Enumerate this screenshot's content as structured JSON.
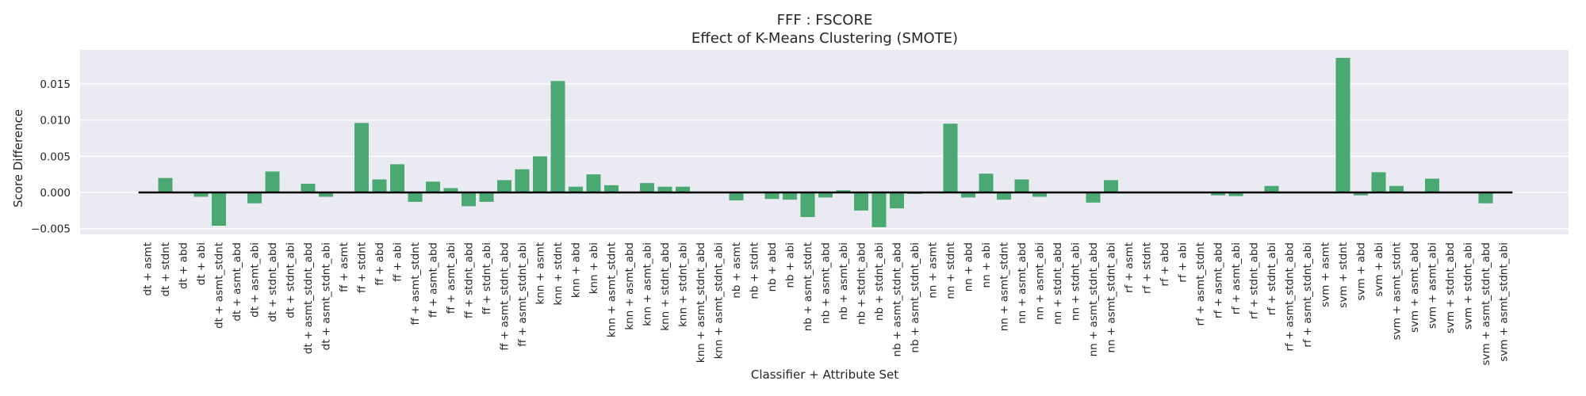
{
  "chart_data": {
    "type": "bar",
    "title": "FFF : FSCORE",
    "subtitle": "Effect of K-Means Clustering (SMOTE)",
    "xlabel": "Classifier + Attribute Set",
    "ylabel": "Score Difference",
    "ylim": [
      -0.0058,
      0.0197
    ],
    "yticks": [
      -0.005,
      0.0,
      0.005,
      0.01,
      0.015
    ],
    "ytick_labels": [
      "−0.005",
      "0.000",
      "0.005",
      "0.010",
      "0.015"
    ],
    "grid": true,
    "bar_color": "#4aa872",
    "background_color": "#eaeaf2",
    "zero_line_color": "#000000",
    "categories": [
      "dt + asmt",
      "dt + stdnt",
      "dt + abd",
      "dt + abi",
      "dt + asmt_stdnt",
      "dt + asmt_abd",
      "dt + asmt_abi",
      "dt + stdnt_abd",
      "dt + stdnt_abi",
      "dt + asmt_stdnt_abd",
      "dt + asmt_stdnt_abi",
      "ff + asmt",
      "ff + stdnt",
      "ff + abd",
      "ff + abi",
      "ff + asmt_stdnt",
      "ff + asmt_abd",
      "ff + asmt_abi",
      "ff + stdnt_abd",
      "ff + stdnt_abi",
      "ff + asmt_stdnt_abd",
      "ff + asmt_stdnt_abi",
      "knn + asmt",
      "knn + stdnt",
      "knn + abd",
      "knn + abi",
      "knn + asmt_stdnt",
      "knn + asmt_abd",
      "knn + asmt_abi",
      "knn + stdnt_abd",
      "knn + stdnt_abi",
      "knn + asmt_stdnt_abd",
      "knn + asmt_stdnt_abi",
      "nb + asmt",
      "nb + stdnt",
      "nb + abd",
      "nb + abi",
      "nb + asmt_stdnt",
      "nb + asmt_abd",
      "nb + asmt_abi",
      "nb + stdnt_abd",
      "nb + stdnt_abi",
      "nb + asmt_stdnt_abd",
      "nb + asmt_stdnt_abi",
      "nn + asmt",
      "nn + stdnt",
      "nn + abd",
      "nn + abi",
      "nn + asmt_stdnt",
      "nn + asmt_abd",
      "nn + asmt_abi",
      "nn + stdnt_abd",
      "nn + stdnt_abi",
      "nn + asmt_stdnt_abd",
      "nn + asmt_stdnt_abi",
      "rf + asmt",
      "rf + stdnt",
      "rf + abd",
      "rf + abi",
      "rf + asmt_stdnt",
      "rf + asmt_abd",
      "rf + asmt_abi",
      "rf + stdnt_abd",
      "rf + stdnt_abi",
      "rf + asmt_stdnt_abd",
      "rf + asmt_stdnt_abi",
      "svm + asmt",
      "svm + stdnt",
      "svm + abd",
      "svm + abi",
      "svm + asmt_stdnt",
      "svm + asmt_abd",
      "svm + asmt_abi",
      "svm + stdnt_abd",
      "svm + stdnt_abi",
      "svm + asmt_stdnt_abd",
      "svm + asmt_stdnt_abi"
    ],
    "values": [
      0.0,
      0.002,
      0.0,
      -0.0006,
      -0.0046,
      0.0,
      -0.0015,
      0.0029,
      0.0,
      0.0012,
      -0.0006,
      0.0,
      0.0096,
      0.0018,
      0.0039,
      -0.0013,
      0.0015,
      0.0006,
      -0.0019,
      -0.0013,
      0.0017,
      0.0032,
      0.005,
      0.0154,
      0.0008,
      0.0025,
      0.001,
      0.0,
      0.0013,
      0.0008,
      0.0008,
      0.0,
      0.0,
      -0.0011,
      0.0,
      -0.0009,
      -0.001,
      -0.0034,
      -0.0007,
      0.0003,
      -0.0025,
      -0.0048,
      -0.0022,
      -0.0002,
      0.0,
      0.0095,
      -0.0007,
      0.0026,
      -0.001,
      0.0018,
      -0.0006,
      0.0,
      0.0,
      -0.0014,
      0.0017,
      0.0,
      0.0,
      0.0,
      0.0,
      0.0,
      -0.0004,
      -0.0005,
      0.0,
      0.0009,
      0.0,
      0.0,
      0.0,
      0.0186,
      -0.0004,
      0.0028,
      0.0009,
      0.0,
      0.0019,
      0.0,
      0.0,
      -0.0015,
      0.0
    ]
  }
}
